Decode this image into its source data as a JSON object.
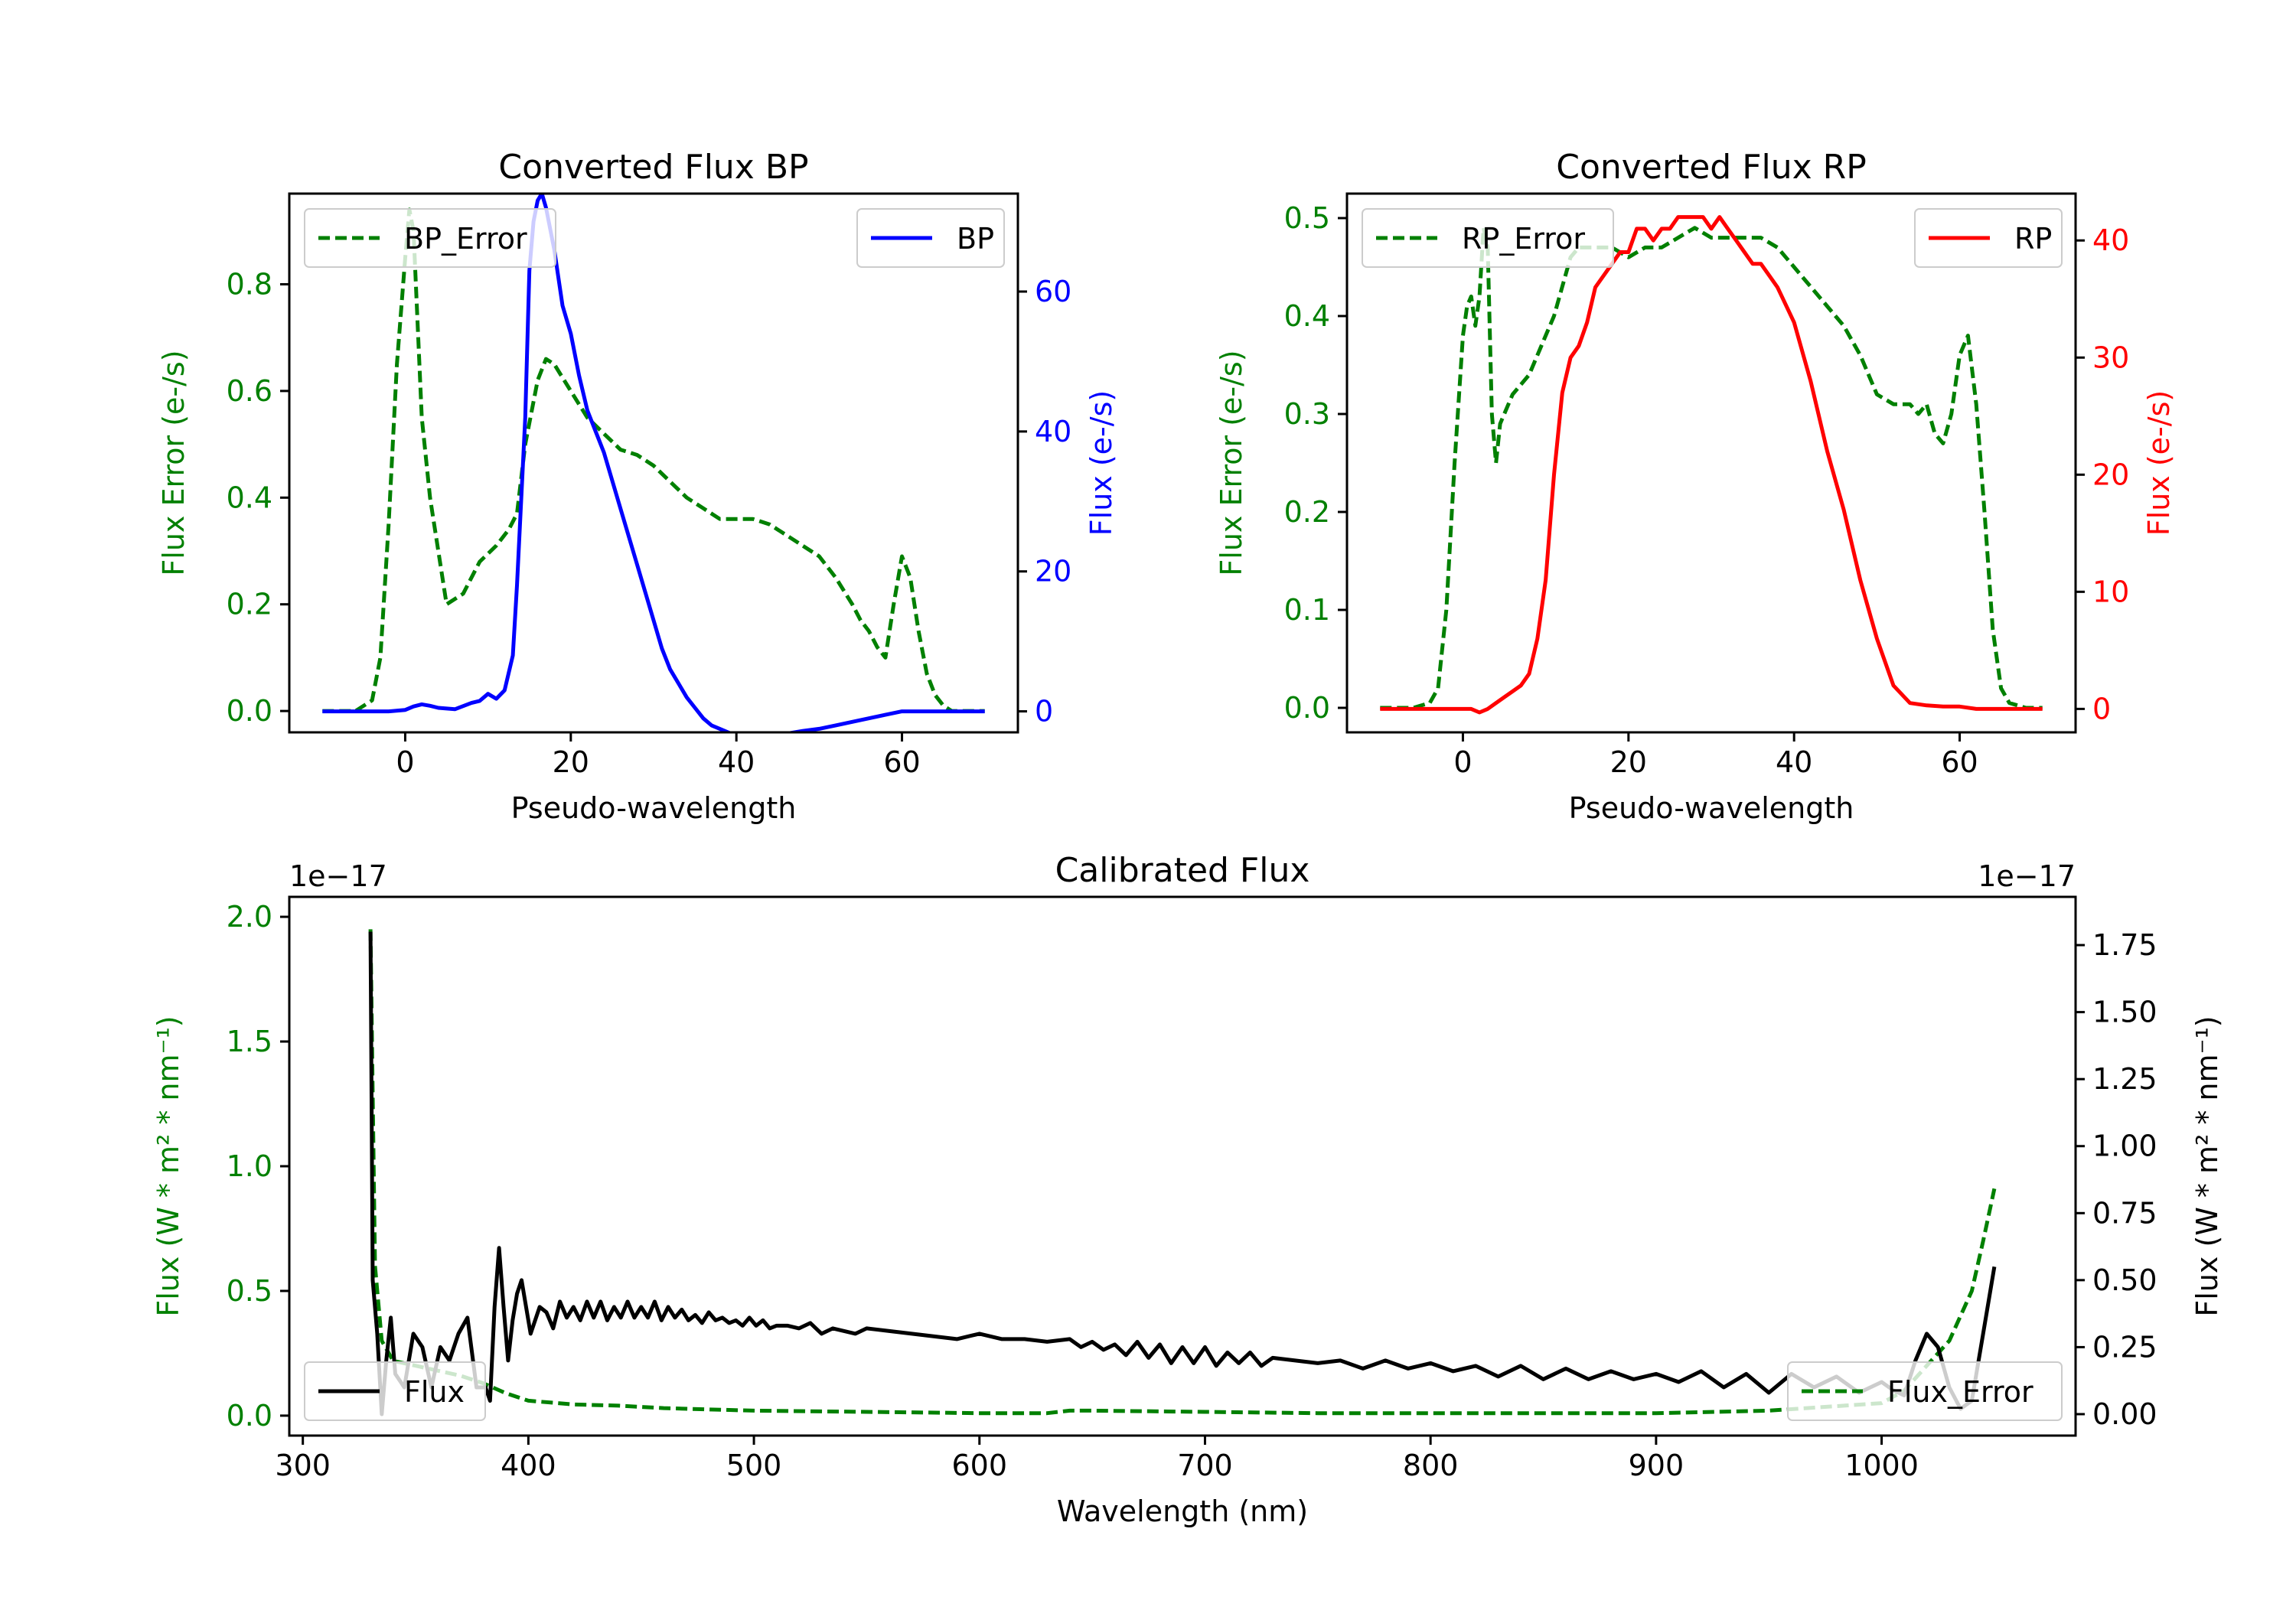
{
  "colors": {
    "green": "#008000",
    "blue": "#0000ff",
    "red": "#ff0000",
    "black": "#000000"
  },
  "chart_data": [
    {
      "type": "line",
      "title": "Converted Flux BP",
      "xlabel": "Pseudo-wavelength",
      "ylabel_left": "Flux Error (e-/s)",
      "ylabel_right": "Flux (e-/s)",
      "xlim": [
        -14,
        74
      ],
      "ylim_left": [
        -0.04,
        0.97
      ],
      "ylim_right": [
        -3,
        74
      ],
      "xticks": [
        0,
        20,
        40,
        60
      ],
      "xtick_labels": [
        "0",
        "20",
        "40",
        "60"
      ],
      "yticks_left": [
        0.0,
        0.2,
        0.4,
        0.6,
        0.8
      ],
      "ytick_labels_left": [
        "0.0",
        "0.2",
        "0.4",
        "0.6",
        "0.8"
      ],
      "yticks_right": [
        0,
        20,
        40,
        60
      ],
      "ytick_labels_right": [
        "0",
        "20",
        "40",
        "60"
      ],
      "legend": [
        "BP_Error",
        "BP"
      ],
      "series": [
        {
          "name": "BP_Error",
          "axis": "left",
          "color": "#008000",
          "dashed": true,
          "x": [
            -10,
            -6,
            -4,
            -3,
            -2,
            -1,
            0,
            0.5,
            1,
            2,
            3,
            4,
            5,
            7,
            9,
            11,
            12.5,
            13.5,
            14.5,
            16,
            17,
            18,
            20,
            22,
            24,
            26,
            28,
            30,
            32,
            34,
            36,
            38,
            40,
            42,
            44,
            46,
            48,
            50,
            52,
            54,
            55,
            56,
            57,
            58,
            59,
            60,
            61,
            62,
            63,
            64,
            65,
            66,
            68,
            70
          ],
          "y": [
            0,
            0,
            0.02,
            0.1,
            0.35,
            0.65,
            0.85,
            0.94,
            0.9,
            0.55,
            0.4,
            0.3,
            0.2,
            0.22,
            0.28,
            0.31,
            0.34,
            0.37,
            0.5,
            0.62,
            0.66,
            0.65,
            0.6,
            0.55,
            0.52,
            0.49,
            0.48,
            0.46,
            0.43,
            0.4,
            0.38,
            0.36,
            0.36,
            0.36,
            0.35,
            0.33,
            0.31,
            0.29,
            0.25,
            0.2,
            0.17,
            0.15,
            0.12,
            0.1,
            0.2,
            0.29,
            0.25,
            0.15,
            0.07,
            0.03,
            0.01,
            0,
            0,
            0
          ]
        },
        {
          "name": "BP",
          "axis": "right",
          "color": "#0000ff",
          "dashed": false,
          "x": [
            -10,
            -6,
            -4,
            -2,
            0,
            1,
            2,
            3,
            4,
            6,
            8,
            9,
            10,
            11,
            12,
            13,
            13.5,
            14.5,
            15,
            15.5,
            16,
            16.5,
            17,
            18,
            19,
            20,
            21,
            22,
            24,
            26,
            28,
            30,
            31,
            32,
            33,
            34,
            35,
            36,
            37,
            38,
            39,
            40,
            42,
            44,
            46,
            48,
            50,
            52,
            54,
            56,
            58,
            60,
            62,
            64,
            66,
            68,
            70
          ],
          "y": [
            0,
            0,
            0,
            0,
            0.2,
            0.7,
            1,
            0.8,
            0.5,
            0.3,
            1.2,
            1.5,
            2.5,
            1.8,
            3,
            8,
            18,
            42,
            63,
            70,
            73,
            74,
            72,
            66,
            58,
            54,
            48,
            43,
            37,
            29,
            21,
            13,
            9,
            6,
            4,
            2,
            0.5,
            -1,
            -2,
            -2.5,
            -3,
            -3.5,
            -4,
            -3.5,
            -3.2,
            -2.8,
            -2.5,
            -2,
            -1.5,
            -1,
            -0.5,
            0,
            0,
            0,
            0,
            0,
            0
          ]
        }
      ]
    },
    {
      "type": "line",
      "title": "Converted Flux RP",
      "xlabel": "Pseudo-wavelength",
      "ylabel_left": "Flux Error (e-/s)",
      "ylabel_right": "Flux (e-/s)",
      "xlim": [
        -14,
        74
      ],
      "ylim_left": [
        -0.025,
        0.525
      ],
      "ylim_right": [
        -2,
        44
      ],
      "xticks": [
        0,
        20,
        40,
        60
      ],
      "xtick_labels": [
        "0",
        "20",
        "40",
        "60"
      ],
      "yticks_left": [
        0.0,
        0.1,
        0.2,
        0.3,
        0.4,
        0.5
      ],
      "ytick_labels_left": [
        "0.0",
        "0.1",
        "0.2",
        "0.3",
        "0.4",
        "0.5"
      ],
      "yticks_right": [
        0,
        10,
        20,
        30,
        40
      ],
      "ytick_labels_right": [
        "0",
        "10",
        "20",
        "30",
        "40"
      ],
      "legend": [
        "RP_Error",
        "RP"
      ],
      "series": [
        {
          "name": "RP_Error",
          "axis": "left",
          "color": "#008000",
          "dashed": true,
          "x": [
            -10,
            -6,
            -4,
            -3,
            -2,
            -1,
            0,
            0.5,
            1,
            1.5,
            2,
            2.5,
            3,
            3.5,
            4,
            4.5,
            5,
            6,
            7,
            8,
            9,
            10,
            11,
            12,
            13,
            14,
            15,
            16,
            18,
            20,
            22,
            24,
            26,
            28,
            30,
            32,
            34,
            36,
            38,
            40,
            42,
            44,
            46,
            48,
            50,
            52,
            54,
            55,
            56,
            57,
            58,
            59,
            60,
            61,
            62,
            63,
            64,
            65,
            66,
            68,
            70
          ],
          "y": [
            0,
            0,
            0.005,
            0.02,
            0.1,
            0.25,
            0.38,
            0.41,
            0.42,
            0.39,
            0.42,
            0.49,
            0.47,
            0.3,
            0.25,
            0.29,
            0.3,
            0.32,
            0.33,
            0.34,
            0.36,
            0.38,
            0.4,
            0.43,
            0.46,
            0.47,
            0.47,
            0.47,
            0.47,
            0.46,
            0.47,
            0.47,
            0.48,
            0.49,
            0.48,
            0.48,
            0.48,
            0.48,
            0.47,
            0.45,
            0.43,
            0.41,
            0.39,
            0.36,
            0.32,
            0.31,
            0.31,
            0.3,
            0.31,
            0.28,
            0.27,
            0.3,
            0.36,
            0.38,
            0.31,
            0.2,
            0.08,
            0.02,
            0.005,
            0,
            0
          ]
        },
        {
          "name": "RP",
          "axis": "right",
          "color": "#ff0000",
          "dashed": false,
          "x": [
            -10,
            -6,
            -4,
            -2,
            0,
            1,
            2,
            3,
            4,
            5,
            6,
            7,
            8,
            9,
            10,
            11,
            12,
            13,
            14,
            15,
            16,
            17,
            18,
            19,
            20,
            21,
            22,
            23,
            24,
            25,
            26,
            27,
            28,
            29,
            30,
            31,
            32,
            33,
            34,
            35,
            36,
            37,
            38,
            40,
            42,
            44,
            46,
            48,
            50,
            52,
            54,
            56,
            58,
            60,
            62,
            64,
            66,
            68,
            70
          ],
          "y": [
            0,
            0,
            0,
            0,
            0,
            0,
            -0.3,
            0,
            0.5,
            1,
            1.5,
            2,
            3,
            6,
            11,
            20,
            27,
            30,
            31,
            33,
            36,
            37,
            38,
            39,
            39,
            41,
            41,
            40,
            41,
            41,
            42,
            42,
            42,
            42,
            41,
            42,
            41,
            40,
            39,
            38,
            38,
            37,
            36,
            33,
            28,
            22,
            17,
            11,
            6,
            2,
            0.5,
            0.3,
            0.2,
            0.2,
            0,
            0,
            0,
            0,
            0
          ]
        }
      ]
    },
    {
      "type": "line",
      "title": "Calibrated Flux",
      "xlabel": "Wavelength (nm)",
      "ylabel_left": "Flux (W * m² * nm⁻¹)",
      "ylabel_right": "Flux (W * m² * nm⁻¹)",
      "left_scale_label": "1e−17",
      "right_scale_label": "1e−17",
      "xlim": [
        294,
        1086
      ],
      "ylim_left": [
        -0.08,
        2.08
      ],
      "ylim_right": [
        -0.08,
        1.93
      ],
      "xticks": [
        300,
        400,
        500,
        600,
        700,
        800,
        900,
        1000
      ],
      "xtick_labels": [
        "300",
        "400",
        "500",
        "600",
        "700",
        "800",
        "900",
        "1000"
      ],
      "yticks_left": [
        0.0,
        0.5,
        1.0,
        1.5,
        2.0
      ],
      "ytick_labels_left": [
        "0.0",
        "0.5",
        "1.0",
        "1.5",
        "2.0"
      ],
      "yticks_right": [
        0.0,
        0.25,
        0.5,
        0.75,
        1.0,
        1.25,
        1.5,
        1.75
      ],
      "ytick_labels_right": [
        "0.00",
        "0.25",
        "0.50",
        "0.75",
        "1.00",
        "1.25",
        "1.50",
        "1.75"
      ],
      "legend": [
        "Flux",
        "Flux_Error"
      ],
      "series": [
        {
          "name": "Flux_Error",
          "axis": "left",
          "color": "#008000",
          "dashed": true,
          "x": [
            330,
            332,
            335,
            340,
            350,
            360,
            370,
            380,
            390,
            400,
            420,
            440,
            460,
            480,
            500,
            550,
            600,
            630,
            640,
            650,
            700,
            750,
            800,
            850,
            900,
            950,
            1000,
            1010,
            1020,
            1030,
            1040,
            1045,
            1050
          ],
          "y": [
            1.95,
            0.6,
            0.3,
            0.22,
            0.2,
            0.18,
            0.16,
            0.13,
            0.09,
            0.06,
            0.045,
            0.04,
            0.03,
            0.025,
            0.02,
            0.015,
            0.01,
            0.01,
            0.02,
            0.02,
            0.015,
            0.01,
            0.01,
            0.01,
            0.01,
            0.02,
            0.05,
            0.1,
            0.2,
            0.3,
            0.5,
            0.7,
            0.91
          ]
        },
        {
          "name": "Flux",
          "axis": "right",
          "color": "#000000",
          "dashed": false,
          "x": [
            330,
            331,
            333,
            335,
            337,
            339,
            341,
            345,
            349,
            353,
            357,
            361,
            365,
            369,
            373,
            377,
            381,
            383,
            385,
            387,
            389,
            391,
            393,
            395,
            397,
            399,
            401,
            403,
            405,
            408,
            411,
            414,
            417,
            420,
            423,
            426,
            429,
            432,
            435,
            438,
            441,
            444,
            447,
            450,
            453,
            456,
            459,
            462,
            465,
            468,
            471,
            474,
            477,
            480,
            483,
            486,
            489,
            492,
            495,
            498,
            501,
            504,
            507,
            510,
            515,
            520,
            525,
            530,
            535,
            540,
            545,
            550,
            560,
            570,
            580,
            590,
            600,
            610,
            620,
            630,
            640,
            645,
            650,
            655,
            660,
            665,
            670,
            675,
            680,
            685,
            690,
            695,
            700,
            705,
            710,
            715,
            720,
            725,
            730,
            740,
            750,
            760,
            770,
            780,
            790,
            800,
            810,
            820,
            830,
            840,
            850,
            860,
            870,
            880,
            890,
            900,
            910,
            920,
            930,
            940,
            950,
            960,
            970,
            980,
            990,
            1000,
            1005,
            1010,
            1015,
            1020,
            1025,
            1030,
            1035,
            1040,
            1045,
            1050
          ],
          "y": [
            1.8,
            0.5,
            0.3,
            0.0,
            0.2,
            0.36,
            0.15,
            0.1,
            0.3,
            0.25,
            0.1,
            0.25,
            0.2,
            0.3,
            0.36,
            0.1,
            0.1,
            0.05,
            0.4,
            0.62,
            0.4,
            0.2,
            0.35,
            0.45,
            0.5,
            0.4,
            0.3,
            0.35,
            0.4,
            0.38,
            0.32,
            0.42,
            0.36,
            0.4,
            0.35,
            0.42,
            0.36,
            0.42,
            0.35,
            0.4,
            0.36,
            0.42,
            0.36,
            0.4,
            0.36,
            0.42,
            0.35,
            0.4,
            0.36,
            0.39,
            0.35,
            0.37,
            0.34,
            0.38,
            0.35,
            0.36,
            0.34,
            0.35,
            0.33,
            0.36,
            0.33,
            0.35,
            0.32,
            0.33,
            0.33,
            0.32,
            0.34,
            0.3,
            0.32,
            0.31,
            0.3,
            0.32,
            0.31,
            0.3,
            0.29,
            0.28,
            0.3,
            0.28,
            0.28,
            0.27,
            0.28,
            0.25,
            0.27,
            0.24,
            0.26,
            0.22,
            0.27,
            0.21,
            0.26,
            0.19,
            0.25,
            0.19,
            0.25,
            0.18,
            0.23,
            0.19,
            0.23,
            0.18,
            0.21,
            0.2,
            0.19,
            0.2,
            0.17,
            0.2,
            0.17,
            0.19,
            0.16,
            0.18,
            0.14,
            0.18,
            0.13,
            0.17,
            0.13,
            0.16,
            0.13,
            0.15,
            0.12,
            0.16,
            0.1,
            0.15,
            0.08,
            0.15,
            0.1,
            0.14,
            0.08,
            0.12,
            0.09,
            0.07,
            0.2,
            0.3,
            0.25,
            0.1,
            0.02,
            0.05,
            0.3,
            0.55
          ]
        }
      ]
    }
  ]
}
